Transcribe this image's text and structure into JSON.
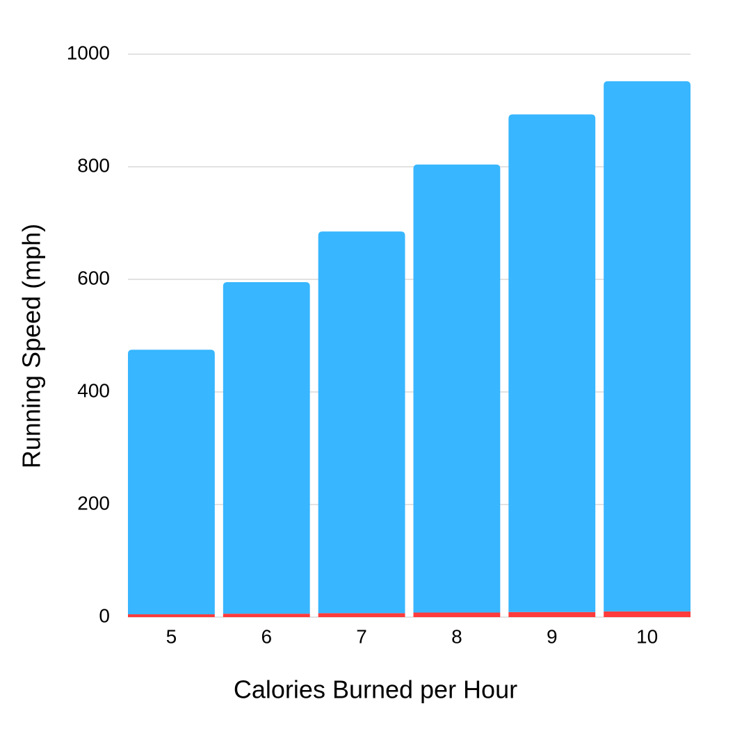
{
  "chart_data": {
    "type": "stacked-bar",
    "x_label": "Calories Burned per Hour",
    "y_label": "Running Speed (mph)",
    "categories": [
      "5",
      "6",
      "7",
      "8",
      "9",
      "10"
    ],
    "series": [
      {
        "color": "#ff3b3b",
        "values": [
          5,
          6,
          7,
          8,
          9,
          10
        ]
      },
      {
        "color": "#38b6ff",
        "values": [
          470,
          589,
          678,
          796,
          884,
          942
        ]
      }
    ],
    "ylim": [
      0,
      1000
    ],
    "yticks": [
      0,
      200,
      400,
      600,
      800,
      1000
    ],
    "grid": true
  }
}
